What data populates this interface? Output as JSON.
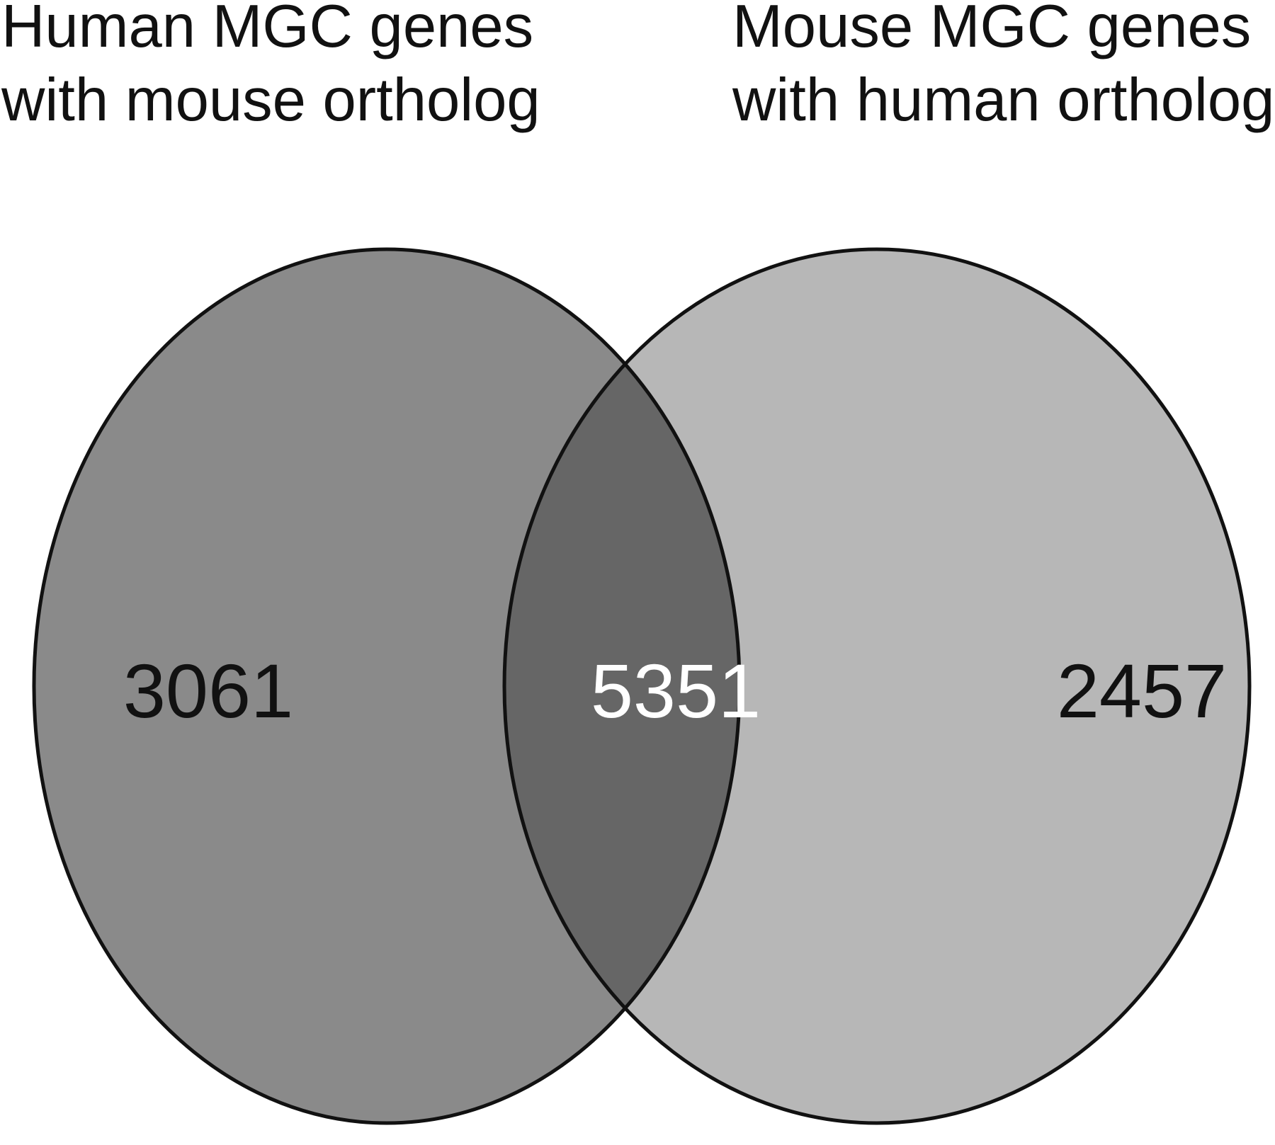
{
  "sets": {
    "left": {
      "label_lines": [
        "Human MGC genes",
        "with mouse ortholog"
      ],
      "only_count": "3061",
      "fill": "#8a8a8a"
    },
    "right": {
      "label_lines": [
        "Mouse MGC genes",
        "with human ortholog"
      ],
      "only_count": "2457",
      "fill": "#b7b7b7"
    },
    "overlap": {
      "count": "5351",
      "fill": "#666666"
    }
  },
  "colors": {
    "outline": "#111111",
    "count_text": "#111111",
    "overlap_text": "#ffffff"
  }
}
